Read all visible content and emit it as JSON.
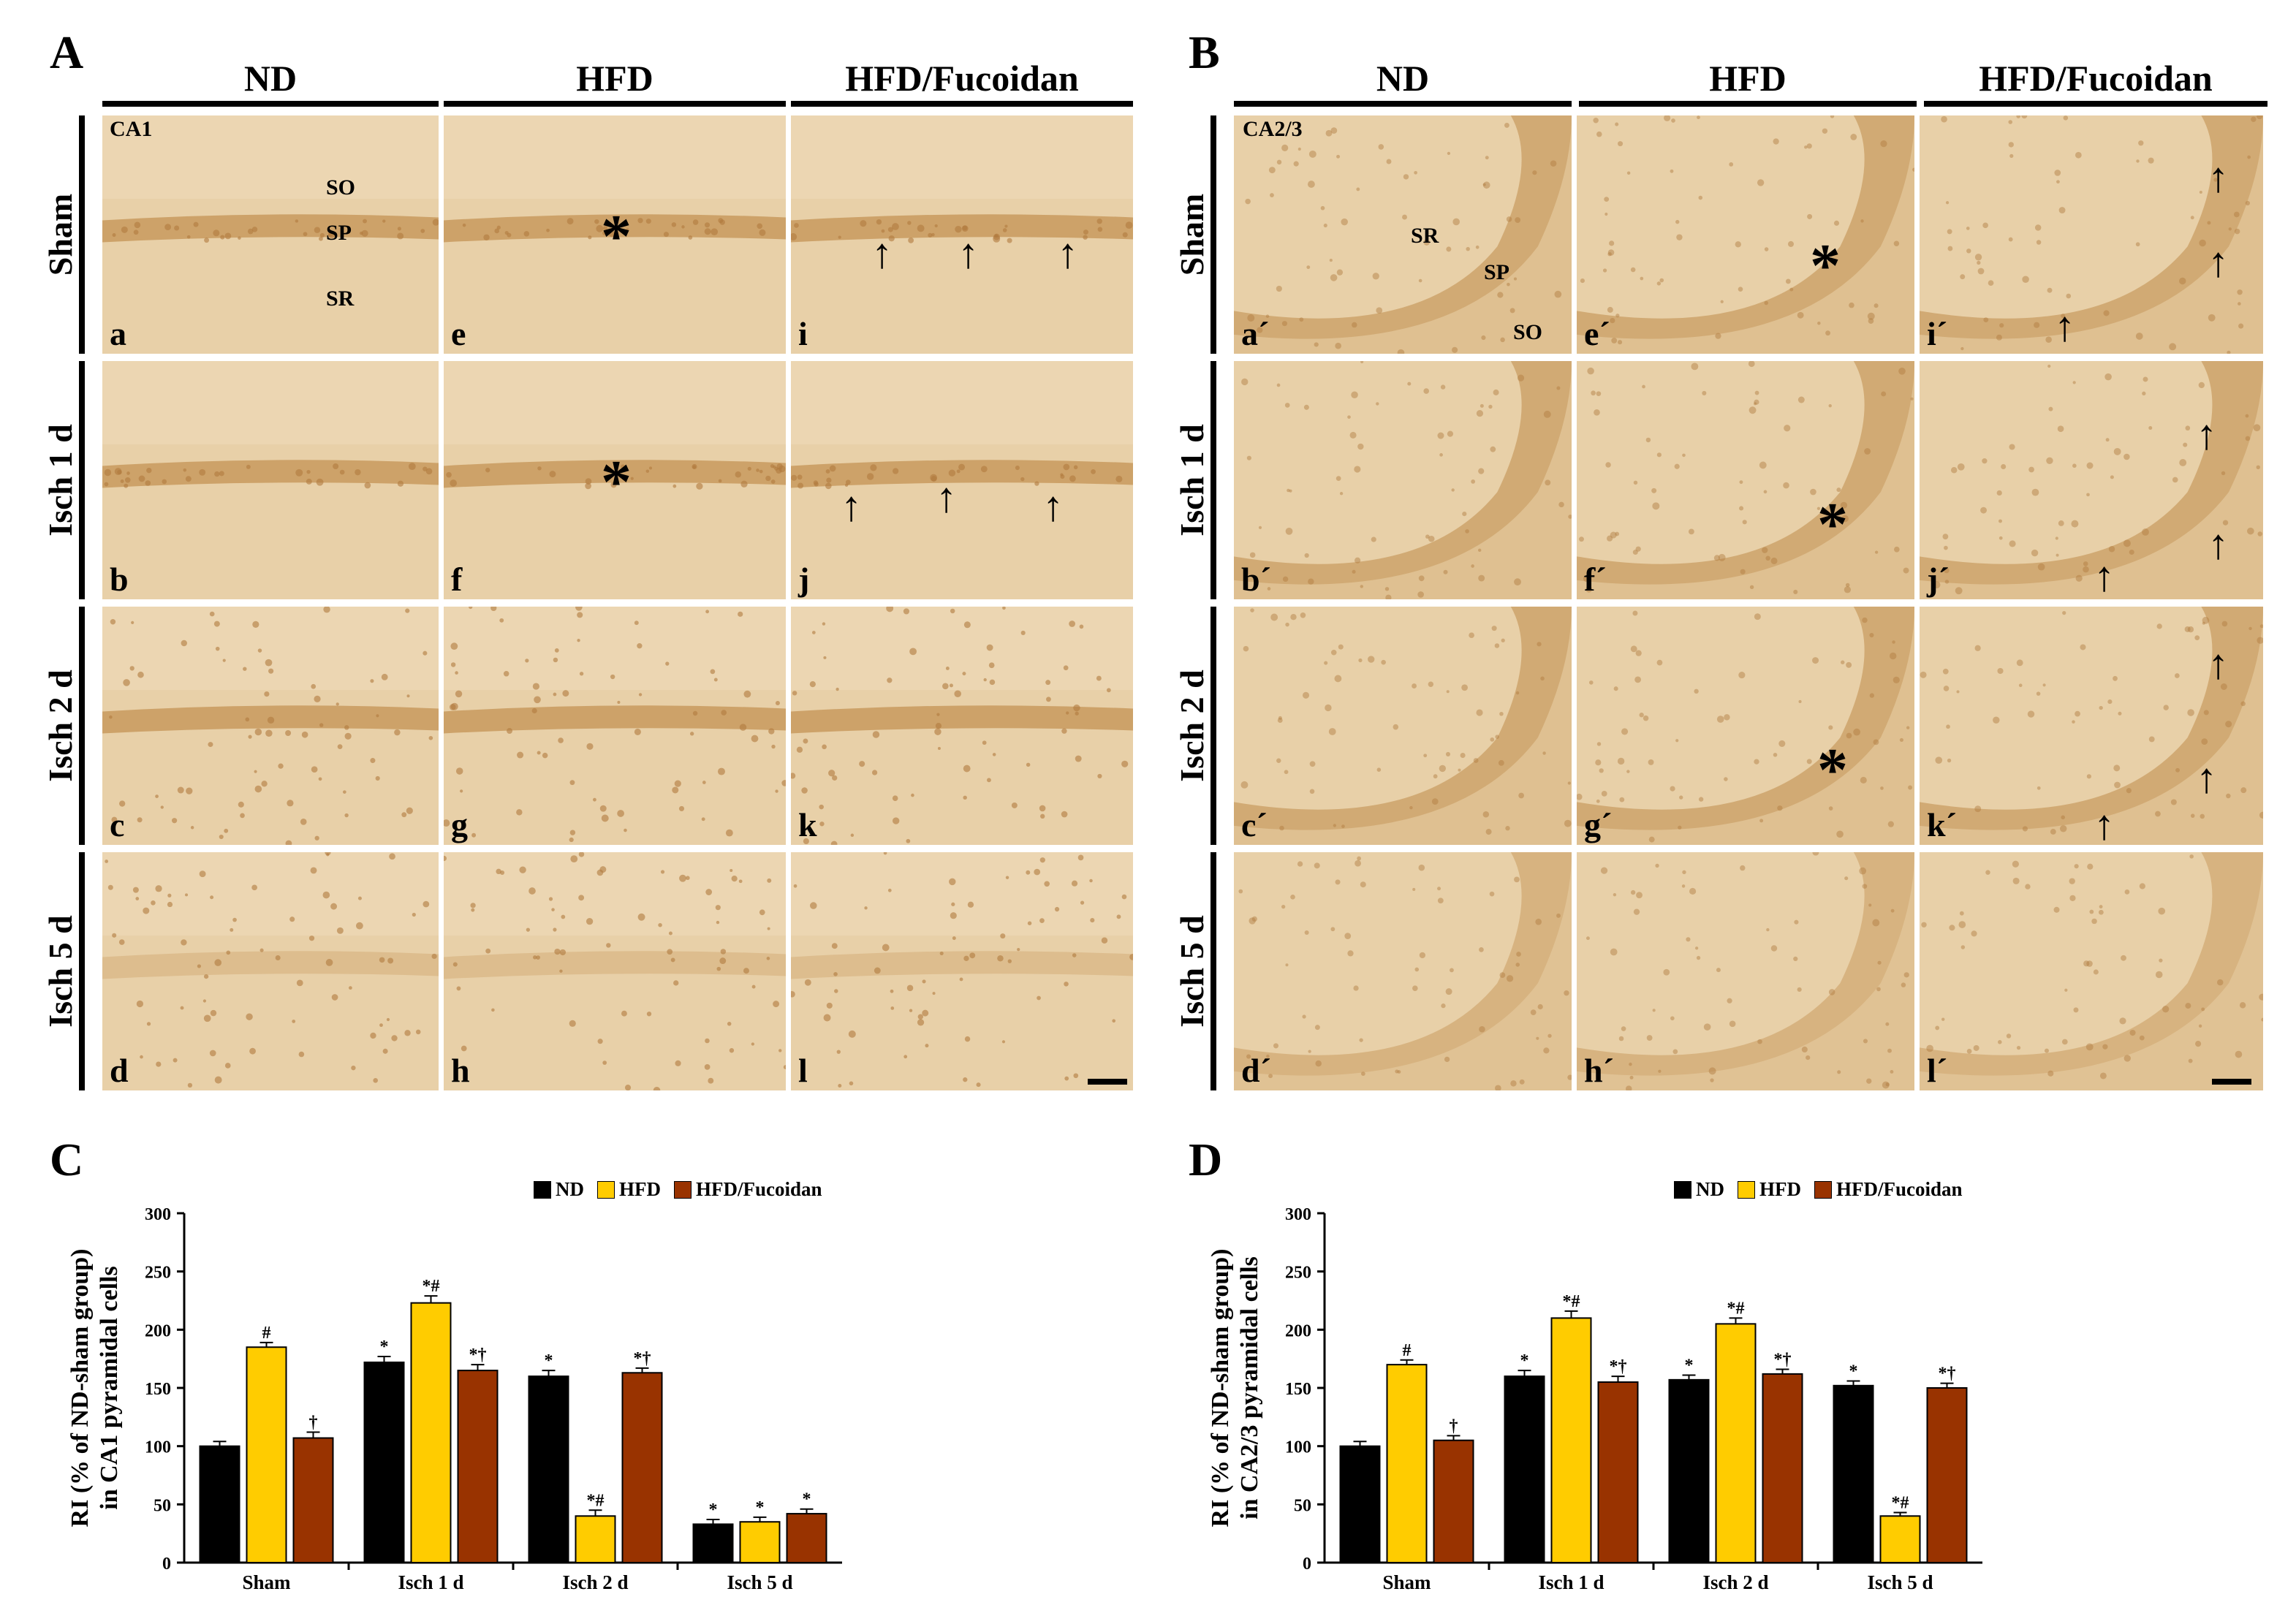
{
  "panels": {
    "A": {
      "label": "A",
      "columns": [
        "ND",
        "HFD",
        "HFD/Fucoidan"
      ],
      "rows": [
        "Sham",
        "Isch 1 d",
        "Isch 2 d",
        "Isch 5 d"
      ],
      "region_label": "CA1",
      "layer_labels": {
        "so": "SO",
        "sp": "SP",
        "sr": "SR"
      },
      "letters": [
        "a",
        "e",
        "i",
        "b",
        "f",
        "j",
        "c",
        "g",
        "k",
        "d",
        "h",
        "l"
      ]
    },
    "B": {
      "label": "B",
      "columns": [
        "ND",
        "HFD",
        "HFD/Fucoidan"
      ],
      "rows": [
        "Sham",
        "Isch 1 d",
        "Isch 2 d",
        "Isch 5 d"
      ],
      "region_label": "CA2/3",
      "layer_labels": {
        "sr": "SR",
        "sp": "SP",
        "so": "SO"
      },
      "letters": [
        "a´",
        "e´",
        "i´",
        "b´",
        "f´",
        "j´",
        "c´",
        "g´",
        "k´",
        "d´",
        "h´",
        "l´"
      ]
    },
    "C": {
      "label": "C"
    },
    "D": {
      "label": "D"
    }
  },
  "markers": {
    "arrow": "↑",
    "star": "*"
  },
  "colors": {
    "ND": "#000000",
    "HFD": "#ffcc00",
    "HFD/Fucoidan": "#993300",
    "tissue_bg": "#e6cca3",
    "tissue_band": "#c89a5e"
  },
  "chart_data": [
    {
      "type": "bar",
      "title": "",
      "ylabel": "RI (% of ND-sham group) in CA1 pyramidal cells",
      "xlabel": "",
      "categories": [
        "Sham",
        "Isch 1 d",
        "Isch 2 d",
        "Isch 5 d"
      ],
      "ylim": [
        0,
        300
      ],
      "yticks": [
        0,
        50,
        100,
        150,
        200,
        250,
        300
      ],
      "series": [
        {
          "name": "ND",
          "values": [
            100,
            172,
            160,
            33
          ],
          "errors": [
            4,
            5,
            5,
            4
          ],
          "annotations": [
            "",
            "*",
            "*",
            "*"
          ]
        },
        {
          "name": "HFD",
          "values": [
            185,
            223,
            40,
            35
          ],
          "errors": [
            4,
            6,
            5,
            4
          ],
          "annotations": [
            "#",
            "*#",
            "*#",
            "*"
          ]
        },
        {
          "name": "HFD/Fucoidan",
          "values": [
            107,
            165,
            163,
            42
          ],
          "errors": [
            5,
            5,
            4,
            4
          ],
          "annotations": [
            "†",
            "*†",
            "*†",
            "*"
          ]
        }
      ],
      "legend": [
        "ND",
        "HFD",
        "HFD/Fucoidan"
      ],
      "legend_position": "top-center"
    },
    {
      "type": "bar",
      "title": "",
      "ylabel": "RI (% of ND-sham group) in CA2/3 pyramidal cells",
      "xlabel": "",
      "categories": [
        "Sham",
        "Isch 1 d",
        "Isch 2 d",
        "Isch 5 d"
      ],
      "ylim": [
        0,
        300
      ],
      "yticks": [
        0,
        50,
        100,
        150,
        200,
        250,
        300
      ],
      "series": [
        {
          "name": "ND",
          "values": [
            100,
            160,
            157,
            152
          ],
          "errors": [
            4,
            5,
            4,
            4
          ],
          "annotations": [
            "",
            "*",
            "*",
            "*"
          ]
        },
        {
          "name": "HFD",
          "values": [
            170,
            210,
            205,
            40
          ],
          "errors": [
            4,
            6,
            5,
            3
          ],
          "annotations": [
            "#",
            "*#",
            "*#",
            "*#"
          ]
        },
        {
          "name": "HFD/Fucoidan",
          "values": [
            105,
            155,
            162,
            150
          ],
          "errors": [
            4,
            5,
            4,
            4
          ],
          "annotations": [
            "†",
            "*†",
            "*†",
            "*†"
          ]
        }
      ],
      "legend": [
        "ND",
        "HFD",
        "HFD/Fucoidan"
      ],
      "legend_position": "top-center"
    }
  ]
}
